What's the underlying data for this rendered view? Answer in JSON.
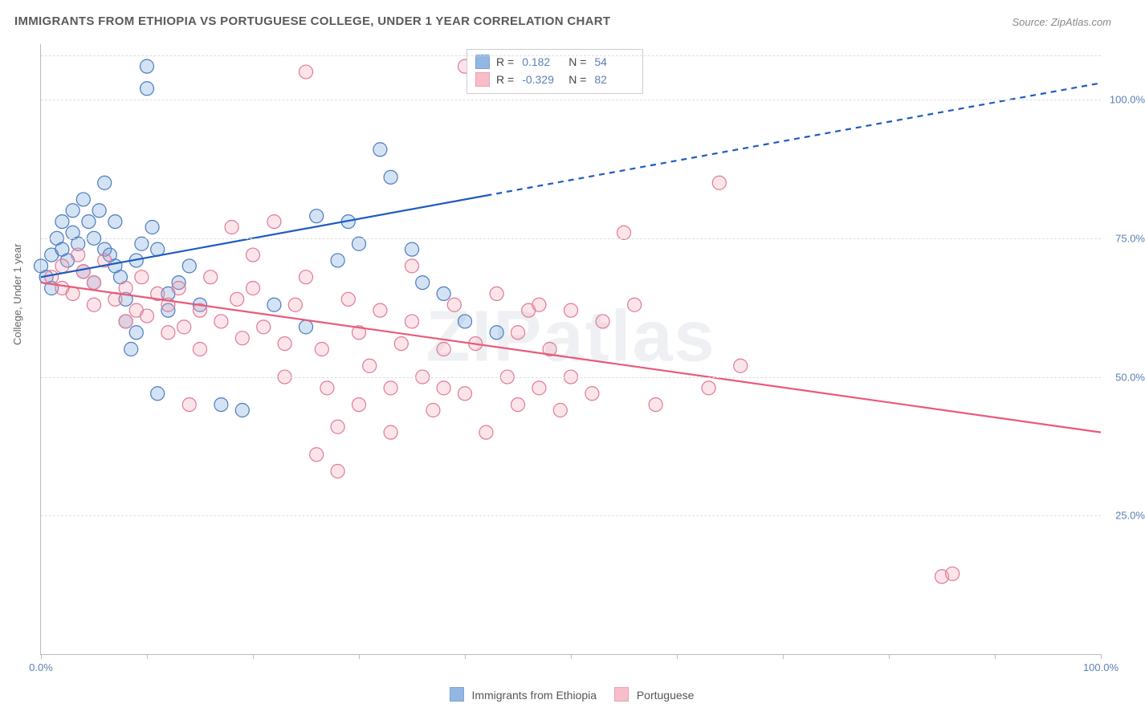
{
  "title": "IMMIGRANTS FROM ETHIOPIA VS PORTUGUESE COLLEGE, UNDER 1 YEAR CORRELATION CHART",
  "source": "Source: ZipAtlas.com",
  "watermark": "ZIPatlas",
  "ylabel": "College, Under 1 year",
  "chart": {
    "type": "scatter",
    "xlim": [
      0,
      100
    ],
    "ylim": [
      0,
      110
    ],
    "x_ticks": [
      0,
      10,
      20,
      30,
      40,
      50,
      60,
      70,
      80,
      90,
      100
    ],
    "x_tick_labels": {
      "0": "0.0%",
      "100": "100.0%"
    },
    "y_ticks": [
      25,
      50,
      75,
      100
    ],
    "y_tick_labels": {
      "25": "25.0%",
      "50": "50.0%",
      "75": "75.0%",
      "100": "100.0%"
    },
    "background_color": "#ffffff",
    "grid_color": "#dddddd",
    "axis_color": "#bbbbbb",
    "marker_radius": 8.5,
    "marker_stroke_width": 1.2,
    "marker_fill_opacity": 0.28,
    "trend_line_width": 2.2,
    "series": [
      {
        "name": "Immigrants from Ethiopia",
        "color": "#6699d8",
        "stroke": "#4a7bc0",
        "line_color": "#1f5bbf",
        "R": "0.182",
        "N": "54",
        "trend": {
          "x1": 0,
          "y1": 68,
          "x2": 100,
          "y2": 103,
          "solid_until_x": 42
        },
        "points": [
          [
            0,
            70
          ],
          [
            0.5,
            68
          ],
          [
            1,
            72
          ],
          [
            1,
            66
          ],
          [
            1.5,
            75
          ],
          [
            2,
            73
          ],
          [
            2,
            78
          ],
          [
            2.5,
            71
          ],
          [
            3,
            80
          ],
          [
            3,
            76
          ],
          [
            3.5,
            74
          ],
          [
            4,
            69
          ],
          [
            4,
            82
          ],
          [
            4.5,
            78
          ],
          [
            5,
            75
          ],
          [
            5,
            67
          ],
          [
            5.5,
            80
          ],
          [
            6,
            73
          ],
          [
            6,
            85
          ],
          [
            6.5,
            72
          ],
          [
            7,
            78
          ],
          [
            7,
            70
          ],
          [
            7.5,
            68
          ],
          [
            8,
            64
          ],
          [
            8,
            60
          ],
          [
            8.5,
            55
          ],
          [
            9,
            58
          ],
          [
            9,
            71
          ],
          [
            9.5,
            74
          ],
          [
            10,
            106
          ],
          [
            10,
            102
          ],
          [
            10.5,
            77
          ],
          [
            11,
            73
          ],
          [
            11,
            47
          ],
          [
            12,
            65
          ],
          [
            12,
            62
          ],
          [
            13,
            67
          ],
          [
            14,
            70
          ],
          [
            15,
            63
          ],
          [
            17,
            45
          ],
          [
            19,
            44
          ],
          [
            22,
            63
          ],
          [
            25,
            59
          ],
          [
            26,
            79
          ],
          [
            28,
            71
          ],
          [
            29,
            78
          ],
          [
            30,
            74
          ],
          [
            32,
            91
          ],
          [
            33,
            86
          ],
          [
            35,
            73
          ],
          [
            36,
            67
          ],
          [
            38,
            65
          ],
          [
            40,
            60
          ],
          [
            43,
            58
          ]
        ]
      },
      {
        "name": "Portuguese",
        "color": "#f5a3b5",
        "stroke": "#e07a92",
        "line_color": "#e85a7a",
        "R": "-0.329",
        "N": "82",
        "trend": {
          "x1": 0,
          "y1": 67,
          "x2": 100,
          "y2": 40,
          "solid_until_x": 100
        },
        "points": [
          [
            1,
            68
          ],
          [
            2,
            70
          ],
          [
            2,
            66
          ],
          [
            3,
            65
          ],
          [
            3.5,
            72
          ],
          [
            4,
            69
          ],
          [
            5,
            67
          ],
          [
            5,
            63
          ],
          [
            6,
            71
          ],
          [
            7,
            64
          ],
          [
            8,
            66
          ],
          [
            8,
            60
          ],
          [
            9,
            62
          ],
          [
            9.5,
            68
          ],
          [
            10,
            61
          ],
          [
            11,
            65
          ],
          [
            12,
            58
          ],
          [
            12,
            63
          ],
          [
            13,
            66
          ],
          [
            13.5,
            59
          ],
          [
            14,
            45
          ],
          [
            15,
            62
          ],
          [
            15,
            55
          ],
          [
            16,
            68
          ],
          [
            17,
            60
          ],
          [
            18,
            77
          ],
          [
            18.5,
            64
          ],
          [
            19,
            57
          ],
          [
            20,
            66
          ],
          [
            20,
            72
          ],
          [
            21,
            59
          ],
          [
            22,
            78
          ],
          [
            23,
            56
          ],
          [
            23,
            50
          ],
          [
            24,
            63
          ],
          [
            25,
            105
          ],
          [
            25,
            68
          ],
          [
            26,
            36
          ],
          [
            26.5,
            55
          ],
          [
            27,
            48
          ],
          [
            28,
            41
          ],
          [
            28,
            33
          ],
          [
            29,
            64
          ],
          [
            30,
            58
          ],
          [
            30,
            45
          ],
          [
            31,
            52
          ],
          [
            32,
            62
          ],
          [
            33,
            48
          ],
          [
            33,
            40
          ],
          [
            34,
            56
          ],
          [
            35,
            60
          ],
          [
            35,
            70
          ],
          [
            36,
            50
          ],
          [
            37,
            44
          ],
          [
            38,
            55
          ],
          [
            38,
            48
          ],
          [
            39,
            63
          ],
          [
            40,
            47
          ],
          [
            40,
            106
          ],
          [
            41,
            56
          ],
          [
            42,
            40
          ],
          [
            43,
            65
          ],
          [
            44,
            50
          ],
          [
            45,
            58
          ],
          [
            45,
            45
          ],
          [
            46,
            62
          ],
          [
            47,
            48
          ],
          [
            48,
            55
          ],
          [
            49,
            44
          ],
          [
            50,
            50
          ],
          [
            50,
            62
          ],
          [
            52,
            47
          ],
          [
            53,
            60
          ],
          [
            55,
            76
          ],
          [
            56,
            63
          ],
          [
            58,
            45
          ],
          [
            64,
            85
          ],
          [
            66,
            52
          ],
          [
            85,
            14
          ],
          [
            86,
            14.5
          ],
          [
            63,
            48
          ],
          [
            47,
            63
          ]
        ]
      }
    ]
  },
  "bottom_legend": {
    "series1": "Immigrants from Ethiopia",
    "series2": "Portuguese"
  }
}
